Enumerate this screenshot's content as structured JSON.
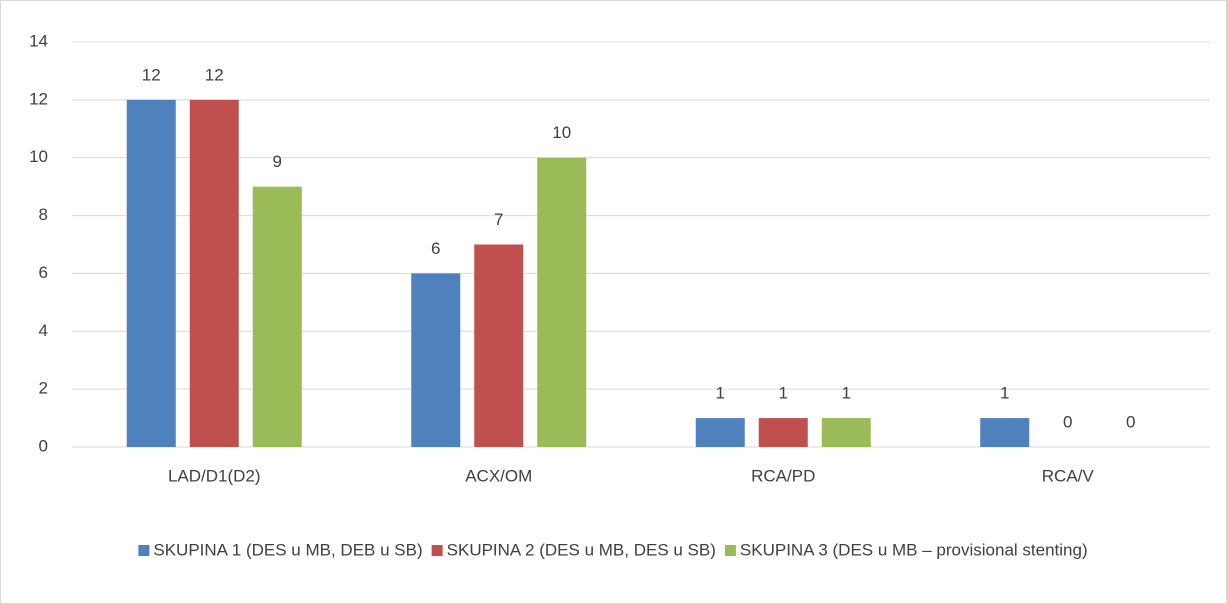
{
  "chart_data": {
    "type": "bar",
    "categories": [
      "LAD/D1(D2)",
      "ACX/OM",
      "RCA/PD",
      "RCA/V"
    ],
    "series": [
      {
        "name": "SKUPINA 1 (DES u MB, DEB u SB)",
        "color": "#4f81bd",
        "values": [
          12,
          6,
          1,
          1
        ]
      },
      {
        "name": "SKUPINA 2 (DES u MB, DES u SB)",
        "color": "#c0504d",
        "values": [
          12,
          7,
          1,
          0
        ]
      },
      {
        "name": "SKUPINA 3 (DES u MB – provisional stenting)",
        "color": "#9bbb59",
        "values": [
          9,
          10,
          1,
          0
        ]
      }
    ],
    "ylim": [
      0,
      14
    ],
    "yticks": [
      0,
      2,
      4,
      6,
      8,
      10,
      12,
      14
    ],
    "grid": true,
    "legend": "bottom"
  }
}
